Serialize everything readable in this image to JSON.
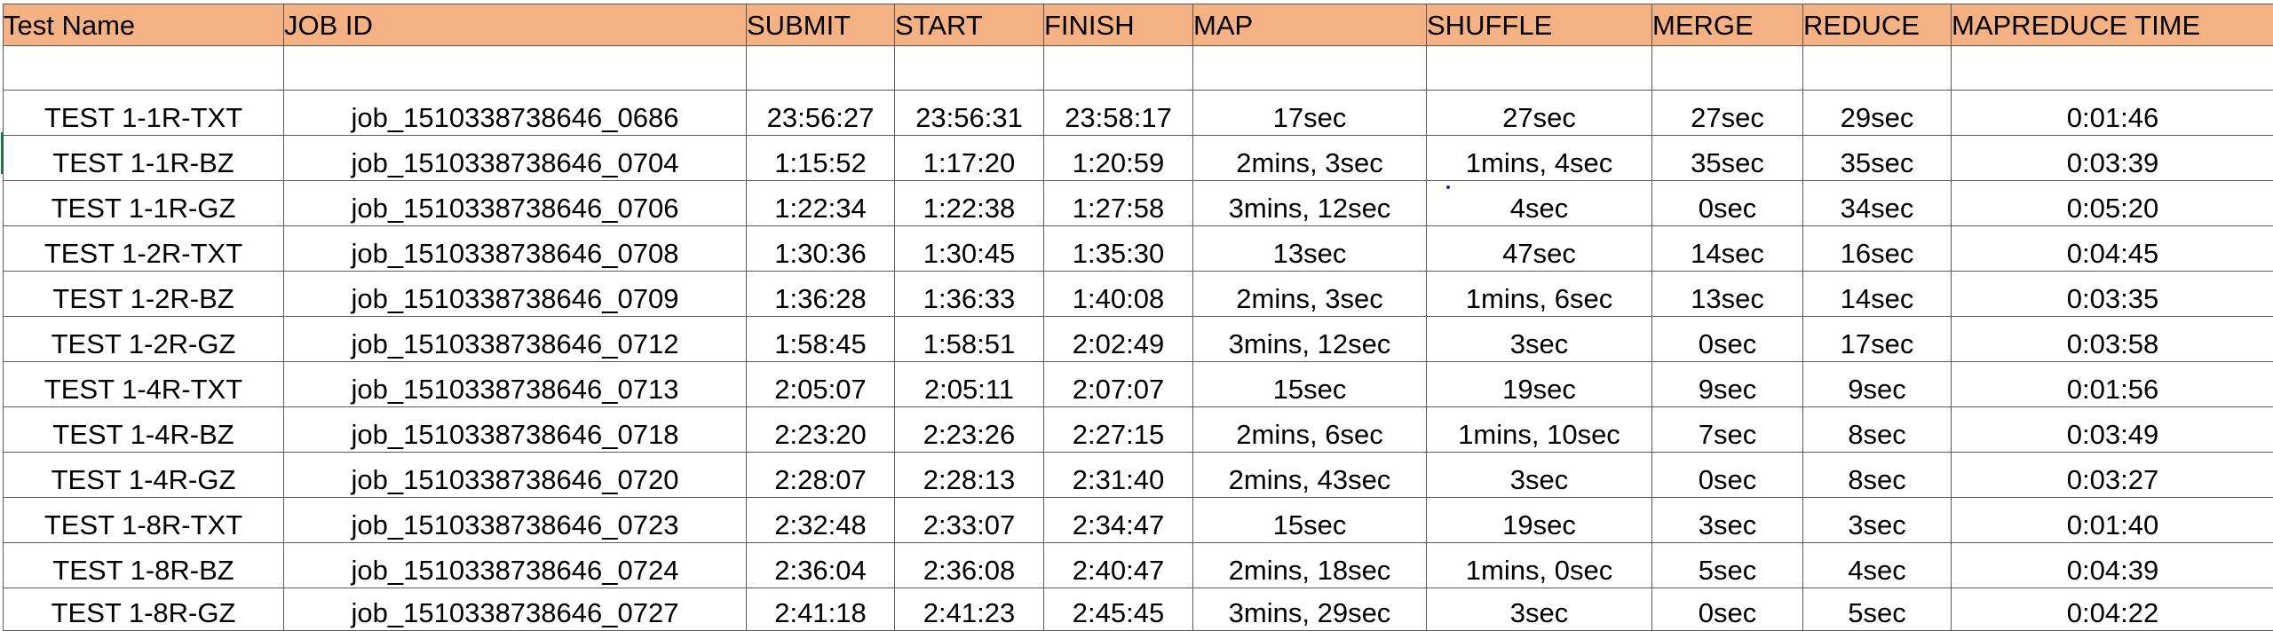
{
  "colors": {
    "header_fill": "#f4b183",
    "border": "#5a5a5a",
    "text": "#000000",
    "selection_mark": "#217346",
    "stray_dot": "#2020e0"
  },
  "columns": [
    "Test Name",
    "JOB ID",
    "SUBMIT",
    "START",
    "FINISH",
    "MAP",
    "SHUFFLE",
    "MERGE",
    "REDUCE",
    "MAPREDUCE TIME"
  ],
  "rows": [
    [
      "TEST 1-1R-TXT",
      "job_1510338738646_0686",
      "23:56:27",
      "23:56:31",
      "23:58:17",
      "17sec",
      "27sec",
      "27sec",
      "29sec",
      "0:01:46"
    ],
    [
      "TEST 1-1R-BZ",
      "job_1510338738646_0704",
      "1:15:52",
      "1:17:20",
      "1:20:59",
      "2mins, 3sec",
      "1mins, 4sec",
      "35sec",
      "35sec",
      "0:03:39"
    ],
    [
      "TEST 1-1R-GZ",
      "job_1510338738646_0706",
      "1:22:34",
      "1:22:38",
      "1:27:58",
      "3mins, 12sec",
      "4sec",
      "0sec",
      "34sec",
      "0:05:20"
    ],
    [
      "TEST 1-2R-TXT",
      "job_1510338738646_0708",
      "1:30:36",
      "1:30:45",
      "1:35:30",
      "13sec",
      "47sec",
      "14sec",
      "16sec",
      "0:04:45"
    ],
    [
      "TEST 1-2R-BZ",
      "job_1510338738646_0709",
      "1:36:28",
      "1:36:33",
      "1:40:08",
      "2mins, 3sec",
      "1mins, 6sec",
      "13sec",
      "14sec",
      "0:03:35"
    ],
    [
      "TEST 1-2R-GZ",
      "job_1510338738646_0712",
      "1:58:45",
      "1:58:51",
      "2:02:49",
      "3mins, 12sec",
      "3sec",
      "0sec",
      "17sec",
      "0:03:58"
    ],
    [
      "TEST 1-4R-TXT",
      "job_1510338738646_0713",
      "2:05:07",
      "2:05:11",
      "2:07:07",
      "15sec",
      "19sec",
      "9sec",
      "9sec",
      "0:01:56"
    ],
    [
      "TEST 1-4R-BZ",
      "job_1510338738646_0718",
      "2:23:20",
      "2:23:26",
      "2:27:15",
      "2mins, 6sec",
      "1mins, 10sec",
      "7sec",
      "8sec",
      "0:03:49"
    ],
    [
      "TEST 1-4R-GZ",
      "job_1510338738646_0720",
      "2:28:07",
      "2:28:13",
      "2:31:40",
      "2mins, 43sec",
      "3sec",
      "0sec",
      "8sec",
      "0:03:27"
    ],
    [
      "TEST 1-8R-TXT",
      "job_1510338738646_0723",
      "2:32:48",
      "2:33:07",
      "2:34:47",
      "15sec",
      "19sec",
      "3sec",
      "3sec",
      "0:01:40"
    ],
    [
      "TEST 1-8R-BZ",
      "job_1510338738646_0724",
      "2:36:04",
      "2:36:08",
      "2:40:47",
      "2mins, 18sec",
      "1mins, 0sec",
      "5sec",
      "4sec",
      "0:04:39"
    ],
    [
      "TEST 1-8R-GZ",
      "job_1510338738646_0727",
      "2:41:18",
      "2:41:23",
      "2:45:45",
      "3mins, 29sec",
      "3sec",
      "0sec",
      "5sec",
      "0:04:22"
    ]
  ]
}
